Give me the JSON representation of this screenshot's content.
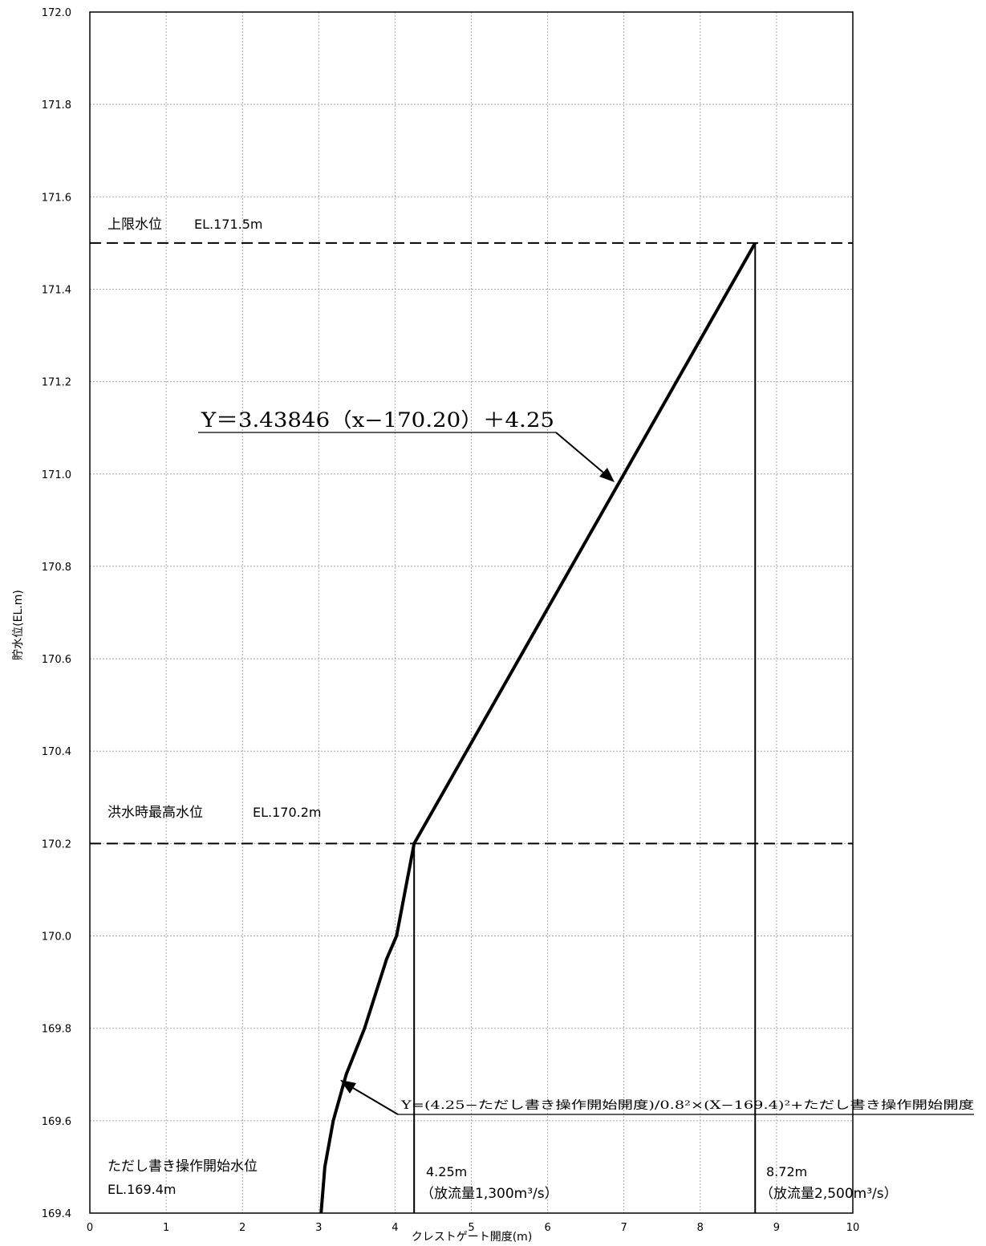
{
  "chart_data": {
    "type": "line",
    "xlabel": "クレストゲート開度(m)",
    "ylabel": "貯水位(EL.m)",
    "xlim": [
      0,
      10
    ],
    "ylim": [
      169.4,
      172.0
    ],
    "x_ticks": [
      "0",
      "1",
      "2",
      "3",
      "4",
      "5",
      "6",
      "7",
      "8",
      "9",
      "10"
    ],
    "y_ticks": [
      "169.4",
      "169.6",
      "169.8",
      "170.0",
      "170.2",
      "170.4",
      "170.6",
      "170.8",
      "171.0",
      "171.2",
      "171.4",
      "171.6",
      "171.8",
      "172.0"
    ],
    "grid": true,
    "series": [
      {
        "style": "thick-black",
        "points": [
          {
            "x": 3.03,
            "y": 169.4
          },
          {
            "x": 3.08,
            "y": 169.5
          },
          {
            "x": 3.19,
            "y": 169.6
          },
          {
            "x": 3.36,
            "y": 169.7
          },
          {
            "x": 3.6,
            "y": 169.8
          },
          {
            "x": 3.89,
            "y": 169.95
          },
          {
            "x": 4.02,
            "y": 170.0
          },
          {
            "x": 4.25,
            "y": 170.2
          },
          {
            "x": 8.72,
            "y": 171.5
          }
        ]
      }
    ],
    "reference_lines": [
      {
        "kind": "horizontal-dashed",
        "y": 171.5,
        "label": "上限水位",
        "value_label": "EL.171.5m"
      },
      {
        "kind": "horizontal-dashed",
        "y": 170.2,
        "label": "洪水時最高水位",
        "value_label": "EL.170.2m"
      },
      {
        "kind": "vertical-solid",
        "x": 4.25,
        "y_top": 170.2
      },
      {
        "kind": "vertical-solid",
        "x": 8.72,
        "y_top": 171.5
      }
    ],
    "annotations": {
      "formula_upper": "Y＝3.43846（x−170.20）＋4.25",
      "formula_lower": "Y=(4.25−ただし書き操作開始開度)/0.8²×(X−169.4)²+ただし書き操作開始開度",
      "start_label_1": "ただし書き操作開始水位",
      "start_label_2": "EL.169.4m",
      "gate1_value": "4.25m",
      "gate1_flow": "（放流量1,300m³/s）",
      "gate2_value": "8.72m",
      "gate2_flow": "（放流量2,500m³/s）"
    }
  }
}
